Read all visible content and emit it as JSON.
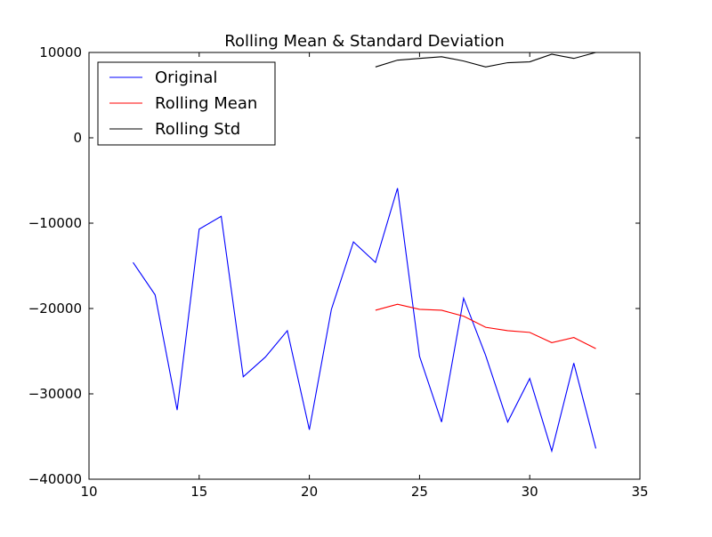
{
  "chart_data": {
    "type": "line",
    "title": "Rolling Mean & Standard Deviation",
    "xlabel": "",
    "ylabel": "",
    "xlim": [
      10,
      35
    ],
    "ylim": [
      -40000,
      10000
    ],
    "xticks": [
      10,
      15,
      20,
      25,
      30,
      35
    ],
    "yticks": [
      -40000,
      -30000,
      -20000,
      -10000,
      0,
      10000
    ],
    "xtick_labels": [
      "10",
      "15",
      "20",
      "25",
      "30",
      "35"
    ],
    "ytick_labels": [
      "−40000",
      "−30000",
      "−20000",
      "−10000",
      "0",
      "10000"
    ],
    "grid": false,
    "legend_position": "top-left",
    "series": [
      {
        "name": "Original",
        "color": "#0000ff",
        "x": [
          12,
          13,
          14,
          15,
          16,
          17,
          18,
          19,
          20,
          21,
          22,
          23,
          24,
          25,
          26,
          27,
          28,
          29,
          30,
          31,
          32,
          33
        ],
        "y": [
          -14600,
          -18400,
          -31900,
          -10700,
          -9200,
          -28000,
          -25700,
          -22600,
          -34200,
          -20100,
          -12200,
          -14600,
          -5900,
          -25600,
          -33300,
          -18800,
          -25500,
          -33300,
          -28200,
          -36700,
          -26400,
          -36400
        ]
      },
      {
        "name": "Rolling Mean",
        "color": "#ff0000",
        "x": [
          23,
          24,
          25,
          26,
          27,
          28,
          29,
          30,
          31,
          32,
          33
        ],
        "y": [
          -20200,
          -19500,
          -20100,
          -20200,
          -20900,
          -22200,
          -22600,
          -22800,
          -24000,
          -23400,
          -24700
        ]
      },
      {
        "name": "Rolling Std",
        "color": "#000000",
        "x": [
          23,
          24,
          25,
          26,
          27,
          28,
          29,
          30,
          31,
          32,
          33
        ],
        "y": [
          8300,
          9100,
          9300,
          9500,
          9000,
          8300,
          8800,
          8900,
          9800,
          9300,
          10000
        ]
      }
    ]
  }
}
